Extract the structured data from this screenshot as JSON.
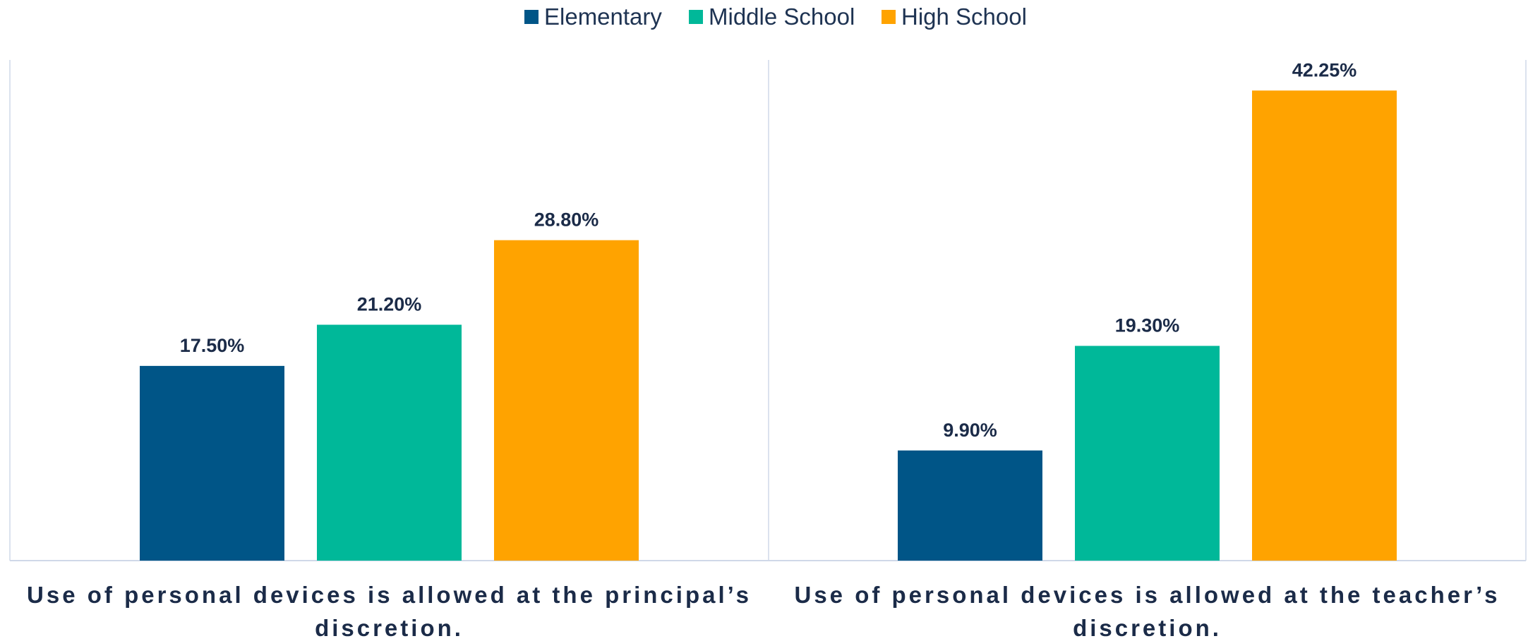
{
  "chart_data": {
    "type": "bar",
    "categories": [
      [
        "Use of personal devices is allowed at the principal’s",
        "discretion."
      ],
      [
        "Use of personal devices is allowed at the teacher’s",
        "discretion."
      ]
    ],
    "series": [
      {
        "name": "Elementary",
        "color": "#005587",
        "values": [
          17.5,
          9.9
        ],
        "labels": [
          "17.50%",
          "9.90%"
        ]
      },
      {
        "name": "Middle School",
        "color": "#00b899",
        "values": [
          21.2,
          19.3
        ],
        "labels": [
          "21.20%",
          "19.30%"
        ]
      },
      {
        "name": "High School",
        "color": "#ffa300",
        "values": [
          28.8,
          42.25
        ],
        "labels": [
          "28.80%",
          "42.25%"
        ]
      }
    ],
    "ylim": [
      0,
      45
    ],
    "legend_position": "top-center",
    "grid": false
  }
}
